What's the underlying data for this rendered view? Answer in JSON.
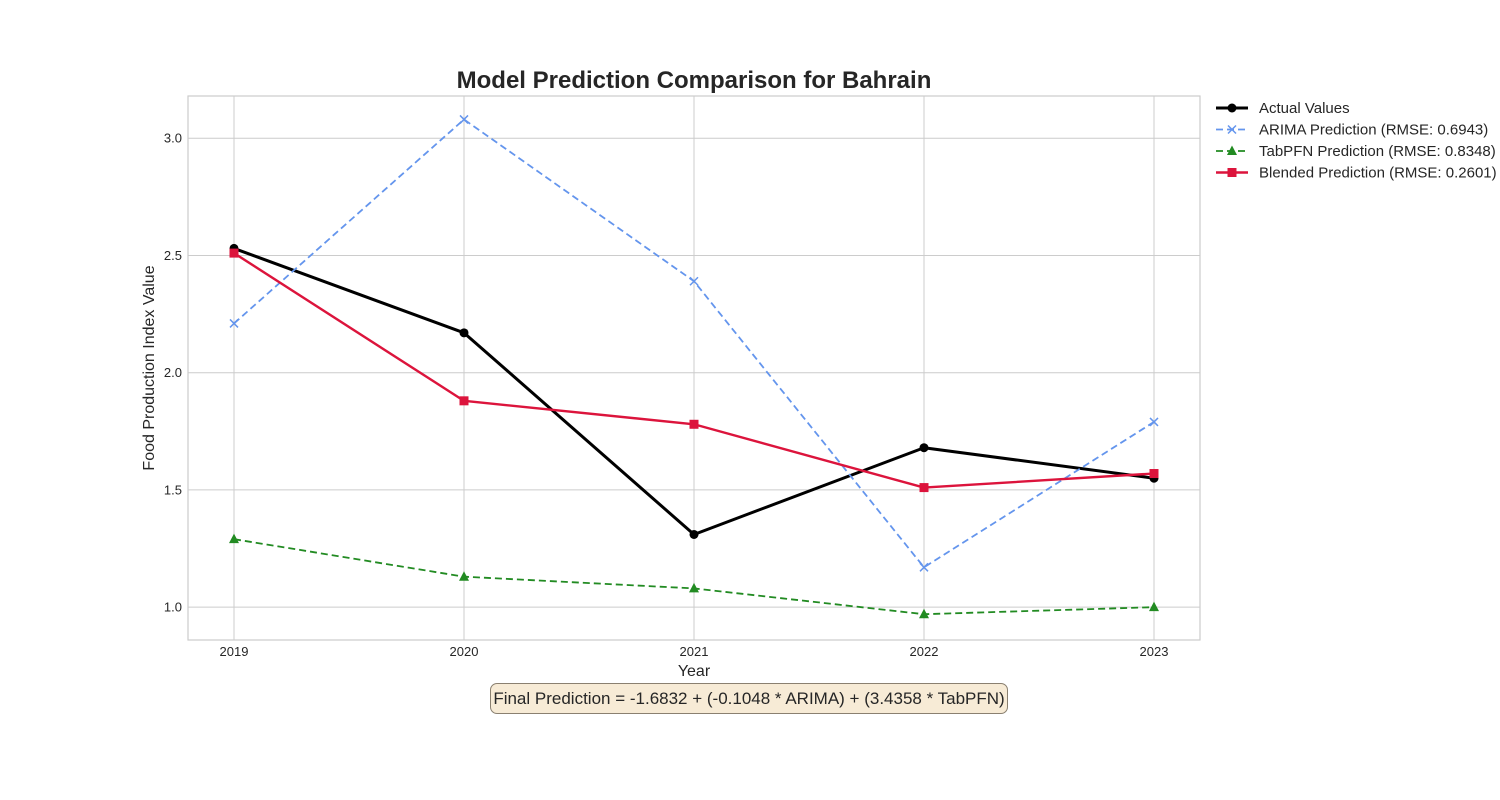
{
  "chart_data": {
    "type": "line",
    "title": "Model Prediction Comparison for Bahrain",
    "xlabel": "Year",
    "ylabel": "Food Production Index Value",
    "categories": [
      "2019",
      "2020",
      "2021",
      "2022",
      "2023"
    ],
    "yticks": [
      "1.0",
      "1.5",
      "2.0",
      "2.5",
      "3.0"
    ],
    "ylim": [
      0.86,
      3.18
    ],
    "grid": true,
    "legend_position": "outside-top-right",
    "series": [
      {
        "name": "Actual Values",
        "values": [
          2.53,
          2.17,
          1.31,
          1.68,
          1.55
        ],
        "color": "#000000",
        "marker": "circle",
        "style": "solid"
      },
      {
        "name": "ARIMA Prediction (RMSE: 0.6943)",
        "values": [
          2.21,
          3.08,
          2.39,
          1.17,
          1.79
        ],
        "color": "#6495ed",
        "marker": "x",
        "style": "dashed"
      },
      {
        "name": "TabPFN Prediction (RMSE: 0.8348)",
        "values": [
          1.29,
          1.13,
          1.08,
          0.97,
          1.0
        ],
        "color": "#228b22",
        "marker": "triangle",
        "style": "dashed"
      },
      {
        "name": "Blended Prediction (RMSE: 0.2601)",
        "values": [
          2.51,
          1.88,
          1.78,
          1.51,
          1.57
        ],
        "color": "#dc143c",
        "marker": "square",
        "style": "solid"
      }
    ],
    "annotation": "Final Prediction = -1.6832 + (-0.1048 * ARIMA) + (3.4358 * TabPFN)"
  }
}
